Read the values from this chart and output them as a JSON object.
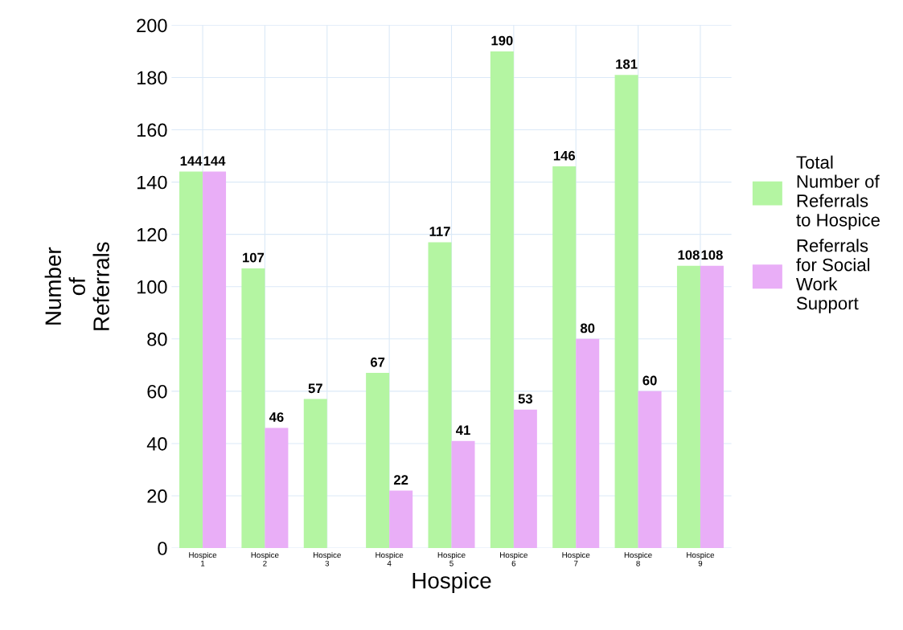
{
  "chart_data": {
    "type": "bar",
    "xlabel": "Hospice",
    "ylabel": "Number\nof\nReferrals",
    "categories": [
      "Hospice\n1",
      "Hospice\n2",
      "Hospice\n3",
      "Hospice\n4",
      "Hospice\n5",
      "Hospice\n6",
      "Hospice\n7",
      "Hospice\n8",
      "Hospice\n9"
    ],
    "series": [
      {
        "name": "Total\nNumber of\nReferrals\nto Hospice",
        "color": "#b4f5a2",
        "values": [
          144,
          107,
          57,
          67,
          117,
          190,
          146,
          181,
          108
        ]
      },
      {
        "name": "Referrals\nfor Social\nWork\nSupport",
        "color": "#e9aef7",
        "values": [
          144,
          46,
          null,
          22,
          41,
          53,
          80,
          60,
          108
        ]
      }
    ],
    "ylim": [
      0,
      200
    ],
    "yticks": [
      0,
      20,
      40,
      60,
      80,
      100,
      120,
      140,
      160,
      180,
      200
    ],
    "grid": true,
    "legend": "right",
    "data_labels": true
  }
}
